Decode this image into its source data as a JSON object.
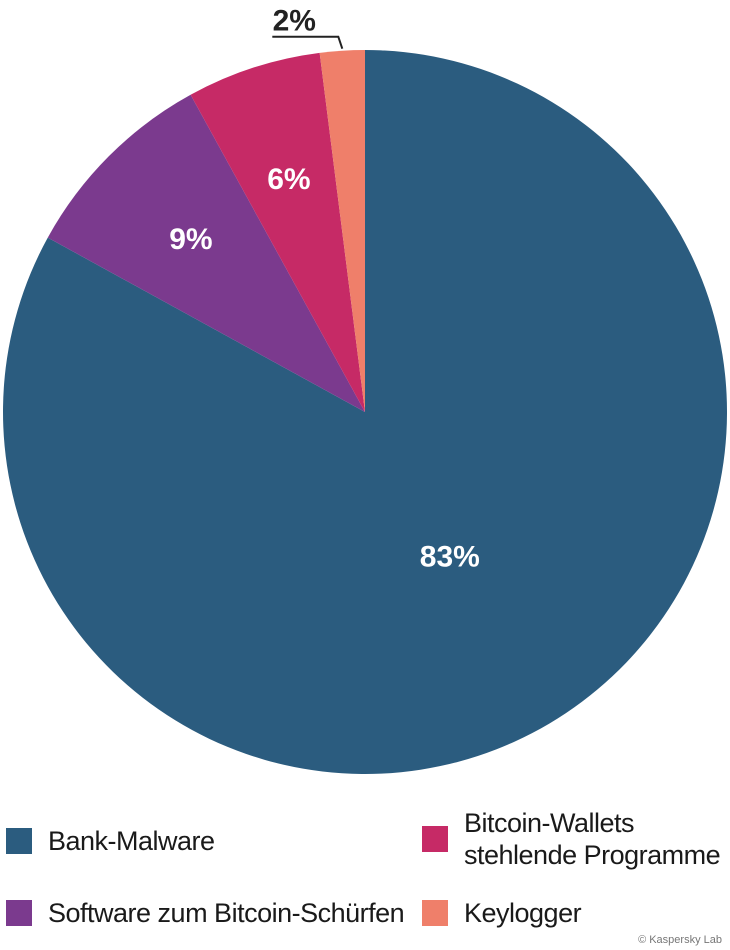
{
  "chart_data": {
    "type": "pie",
    "slices": [
      {
        "label": "Bank-Malware",
        "value": 83,
        "display": "83%",
        "color": "#2b5c7f"
      },
      {
        "label": "Software zum Bitcoin-Schürfen",
        "value": 9,
        "display": "9%",
        "color": "#7b3a8e"
      },
      {
        "label": "Bitcoin-Wallets stehlende Programme",
        "value": 6,
        "display": "6%",
        "color": "#c62a66"
      },
      {
        "label": "Keylogger",
        "value": 2,
        "display": "2%",
        "color": "#ef7f6a"
      }
    ],
    "start": "12 o'clock",
    "direction": "clockwise",
    "legend_placement": "bottom"
  },
  "legend": {
    "items": [
      {
        "label": "Bank-Malware",
        "color": "#2b5c7f"
      },
      {
        "label": "Bitcoin-Wallets",
        "label2": "stehlende Programme",
        "color": "#c62a66"
      },
      {
        "label": "Software zum Bitcoin-Schürfen",
        "color": "#7b3a8e"
      },
      {
        "label": "Keylogger",
        "color": "#ef7f6a"
      }
    ]
  },
  "copyright": "© Kaspersky Lab"
}
